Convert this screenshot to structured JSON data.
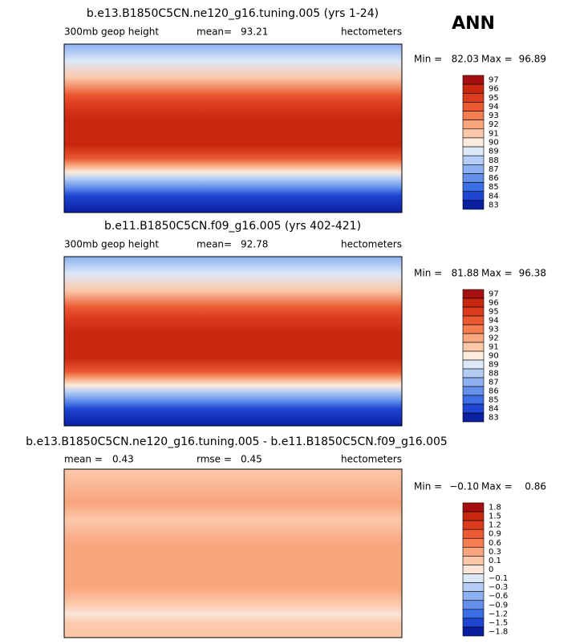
{
  "header": {
    "season": "ANN"
  },
  "panels": [
    {
      "title": "b.e13.B1850C5CN.ne120_g16.tuning.005 (yrs 1-24)",
      "variable": "300mb geop height",
      "mean_label": "mean=",
      "mean": "93.21",
      "units": "hectometers",
      "min_label": "Min =",
      "min": "82.03",
      "max_label": "Max =",
      "max": "96.89",
      "colorbar": {
        "labels": [
          "97",
          "96",
          "95",
          "94",
          "93",
          "92",
          "91",
          "90",
          "89",
          "88",
          "87",
          "86",
          "85",
          "84",
          "83"
        ],
        "colors": [
          "#a50f0f",
          "#c8280f",
          "#dc3c1e",
          "#eb5a32",
          "#f57d50",
          "#f9a57d",
          "#fcc8aa",
          "#fdebdc",
          "#dce8f8",
          "#b4cdf5",
          "#8cb0f0",
          "#6490ec",
          "#3c6ee6",
          "#1e46d2",
          "#0a1ea0"
        ]
      }
    },
    {
      "title": "b.e11.B1850C5CN.f09_g16.005 (yrs 402-421)",
      "variable": "300mb geop height",
      "mean_label": "mean=",
      "mean": "92.78",
      "units": "hectometers",
      "min_label": "Min =",
      "min": "81.88",
      "max_label": "Max =",
      "max": "96.38",
      "colorbar": {
        "labels": [
          "97",
          "96",
          "95",
          "94",
          "93",
          "92",
          "91",
          "90",
          "89",
          "88",
          "87",
          "86",
          "85",
          "84",
          "83"
        ],
        "colors": [
          "#a50f0f",
          "#c8280f",
          "#dc3c1e",
          "#eb5a32",
          "#f57d50",
          "#f9a57d",
          "#fcc8aa",
          "#fdebdc",
          "#dce8f8",
          "#b4cdf5",
          "#8cb0f0",
          "#6490ec",
          "#3c6ee6",
          "#1e46d2",
          "#0a1ea0"
        ]
      }
    },
    {
      "title": "b.e13.B1850C5CN.ne120_g16.tuning.005 - b.e11.B1850C5CN.f09_g16.005",
      "mean_label": "mean =",
      "mean": "0.43",
      "rmse_label": "rmse =",
      "rmse": "0.45",
      "units": "hectometers",
      "min_label": "Min =",
      "min": "−0.10",
      "max_label": "Max =",
      "max": "0.86",
      "colorbar": {
        "labels": [
          "1.8",
          "1.5",
          "1.2",
          "0.9",
          "0.6",
          "0.3",
          "0.1",
          "0",
          "−0.1",
          "−0.3",
          "−0.6",
          "−0.9",
          "−1.2",
          "−1.5",
          "−1.8"
        ],
        "colors": [
          "#a50f0f",
          "#c8280f",
          "#dc3c1e",
          "#eb5a32",
          "#f57d50",
          "#f9a57d",
          "#fcc8aa",
          "#fde6d8",
          "#dce8f8",
          "#b4cdf5",
          "#8cb0f0",
          "#6490ec",
          "#3c6ee6",
          "#1e46d2",
          "#0a1ea0"
        ]
      }
    }
  ]
}
